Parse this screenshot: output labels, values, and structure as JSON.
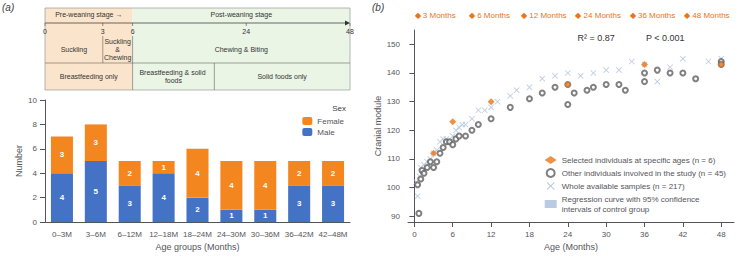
{
  "chart_data": [
    {
      "type": "timeline",
      "xlim": [
        0,
        48
      ],
      "xticks": [
        0,
        3,
        6,
        24,
        48
      ],
      "stages": [
        {
          "start": 0,
          "end": 6,
          "label": "Pre-weaning stage →",
          "color": "#FAE5CC"
        },
        {
          "start": 6,
          "end": 48,
          "label": "Post-weaning stage",
          "color": "#EBF5E6"
        }
      ],
      "behaviour": [
        {
          "start": 0,
          "end": 3,
          "label": "Suckling"
        },
        {
          "start": 3,
          "end": 6,
          "label": "Suckling\n&\nChewing"
        },
        {
          "start": 6,
          "end": 48,
          "label": "Chewing & Biting"
        }
      ],
      "feeding": [
        {
          "start": 0,
          "end": 6,
          "label": "Breastfeeding only"
        },
        {
          "start": 6,
          "end": 18,
          "label": "Breastfeeding & solid foods"
        },
        {
          "start": 18,
          "end": 48,
          "label": "Solid foods only"
        }
      ]
    },
    {
      "type": "bar",
      "title": "(a)",
      "categories": [
        "0–3M",
        "3–6M",
        "6–12M",
        "12–18M",
        "18–24M",
        "24–30M",
        "30–36M",
        "36–42M",
        "42–48M"
      ],
      "series": [
        {
          "name": "Male",
          "color": "#4472C4",
          "values": [
            4,
            5,
            3,
            4,
            2,
            1,
            1,
            3,
            3
          ]
        },
        {
          "name": "Female",
          "color": "#F4861F",
          "values": [
            3,
            3,
            2,
            1,
            4,
            4,
            4,
            2,
            2
          ]
        }
      ],
      "stacked": true,
      "data_labels": true,
      "xlabel": "Age groups (Months)",
      "ylabel": "Number",
      "ylim": [
        0,
        10
      ],
      "yticks": [
        0,
        2,
        4,
        6,
        8,
        10
      ],
      "grid": false,
      "legend": "upper right",
      "legend_title": "Sex"
    },
    {
      "type": "scatter",
      "title": "(b)",
      "header_labels": [
        "◆ 3 Months",
        "◆ 6 Months",
        "◆ 12 Months",
        "◆ 24 Months",
        "◆ 36 Months",
        "◆ 48 Months"
      ],
      "header_color": "#E8751A",
      "annotations": [
        "R² = 0.87",
        "P < 0.001"
      ],
      "xlabel": "Age (Months)",
      "ylabel": "Cranial module",
      "xlim": [
        -1,
        50
      ],
      "xticks": [
        0,
        6,
        12,
        18,
        24,
        30,
        36,
        42,
        48
      ],
      "ylim": [
        88,
        155
      ],
      "yticks": [
        90,
        100,
        110,
        120,
        130,
        140,
        150
      ],
      "grid": false,
      "legend": "lower right",
      "series": [
        {
          "name": "Selected individuals at specific ages (n = 6)",
          "marker": "diamond",
          "color": "#E8751A",
          "x": [
            3,
            6,
            12,
            24,
            36,
            48
          ],
          "y": [
            112,
            123,
            130,
            136,
            143,
            143
          ]
        },
        {
          "name": "Other individuals involved in the study (n = 45)",
          "marker": "open_circle",
          "color": "#606060",
          "x": [
            0.5,
            0.7,
            1.0,
            1.2,
            1.5,
            2.0,
            2.5,
            3.0,
            3.5,
            4.0,
            4.5,
            5.0,
            5.5,
            6.0,
            6.5,
            7.0,
            8.0,
            9.0,
            10.0,
            12.0,
            15.0,
            18.0,
            20.0,
            22.0,
            24.0,
            24.0,
            25.0,
            27.0,
            28.0,
            30.0,
            32.0,
            33.0,
            36.0,
            36.0,
            38.0,
            40.0,
            42.0,
            44.0,
            48.0,
            48.0
          ],
          "y": [
            101,
            91,
            103,
            106,
            105,
            107,
            109,
            107,
            109,
            112,
            114,
            116,
            116,
            115,
            117,
            118,
            118,
            120,
            122,
            124,
            128,
            131,
            133,
            135,
            136,
            129,
            133,
            134,
            135,
            136,
            136,
            134,
            137,
            140,
            141,
            140,
            140,
            138,
            144,
            143
          ]
        },
        {
          "name": "Whole available samples (n = 217)",
          "marker": "x",
          "color": "#AABFD8",
          "x": [
            0.3,
            0.5,
            0.8,
            1.0,
            1.3,
            1.5,
            2.0,
            2.5,
            3.0,
            3.5,
            4.0,
            4.5,
            5.0,
            5.5,
            6.0,
            6.5,
            7.0,
            7.5,
            8.0,
            9.0,
            10.0,
            11.0,
            12.0,
            13.0,
            15.0,
            16.0,
            18.0,
            20.0,
            22.0,
            24.0,
            26.0,
            28.0,
            30.0,
            32.0,
            34.0,
            36.0,
            38.0,
            40.0,
            42.0,
            44.0,
            46.0,
            48.0
          ],
          "y": [
            102,
            97,
            104,
            107,
            106,
            108,
            109,
            110,
            112,
            113,
            116,
            117,
            117,
            116,
            118,
            120,
            121,
            122,
            122,
            124,
            127,
            127,
            128,
            130,
            132,
            134,
            135,
            138,
            139,
            140,
            139,
            140,
            141,
            141,
            144,
            143,
            137,
            142,
            145,
            138,
            144,
            145
          ]
        },
        {
          "name": "Regression curve with 95% confidence\nintervals of control group",
          "type": "area",
          "color": "#B8CBE0",
          "x": [],
          "y": []
        }
      ]
    }
  ]
}
